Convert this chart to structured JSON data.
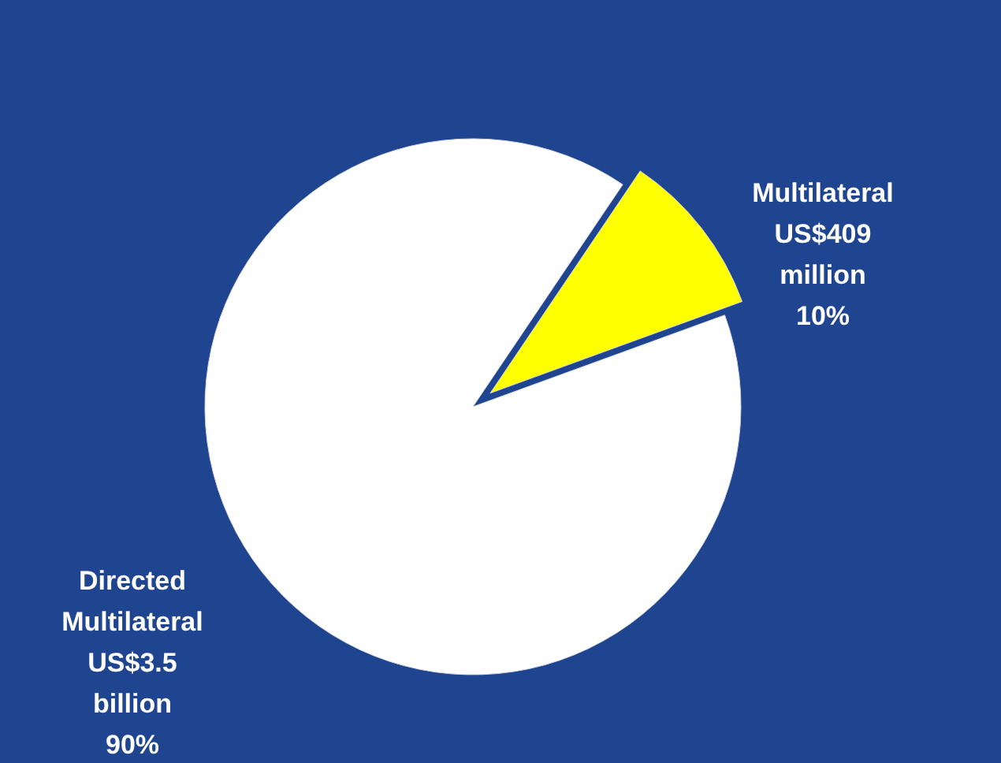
{
  "chart_data": {
    "type": "pie",
    "categories": [
      "Directed Multilateral",
      "Multilateral"
    ],
    "values": [
      90,
      10
    ],
    "colors": [
      "#ffffff",
      "#ffff00"
    ],
    "value_labels": [
      "US$3.5 billion 90%",
      "US$409 million 10%"
    ]
  }
}
